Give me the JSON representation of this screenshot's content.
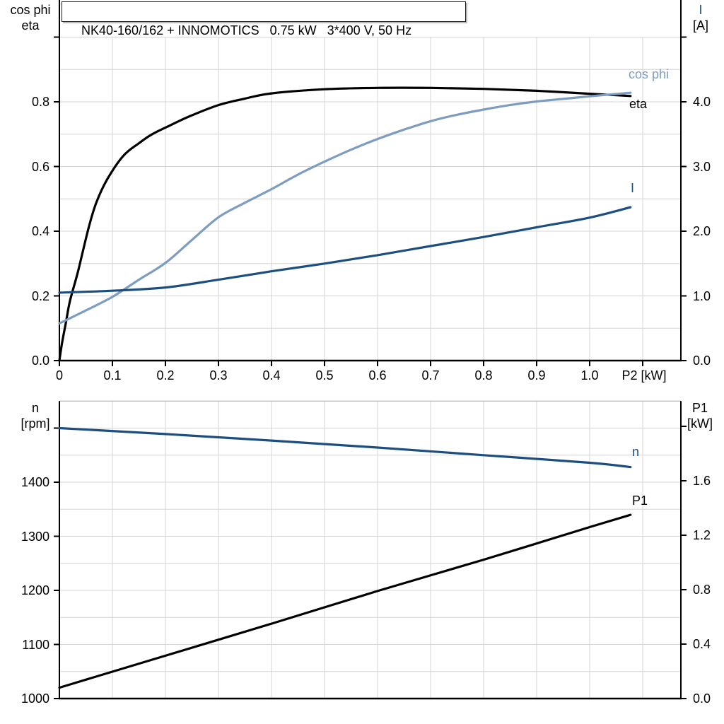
{
  "title": "NK40-160/162 + INNOMOTICS   0.75 kW   3*400 V, 50 Hz",
  "colors": {
    "black": "#000000",
    "light_blue": "#7d9dc0",
    "dark_blue": "#1c4e80",
    "grid": "#d4d4d4",
    "grid_dark": "#a6a6a6",
    "frame": "#000000"
  },
  "axis_headers": {
    "top_left_1": "cos phi",
    "top_left_2": "eta",
    "top_right_1": "I",
    "top_right_2": "[A]",
    "x_label": "P2 [kW]",
    "bottom_left_1": "n",
    "bottom_left_2": "[rpm]",
    "bottom_right_1": "P1",
    "bottom_right_2": "[kW]"
  },
  "chart_data": [
    {
      "type": "line",
      "title": "NK40-160/162 + INNOMOTICS 0.75 kW 3*400 V, 50 Hz",
      "x_axis": {
        "label": "P2 [kW]",
        "min": 0,
        "max": 1.17,
        "tick_values": [
          0,
          0.1,
          0.2,
          0.3,
          0.4,
          0.5,
          0.6,
          0.7,
          0.8,
          0.9,
          1.0
        ],
        "tick_labels": [
          "0",
          "0.1",
          "0.2",
          "0.3",
          "0.4",
          "0.5",
          "0.6",
          "0.7",
          "0.8",
          "0.9",
          "1.0"
        ],
        "grid": true
      },
      "y_left": {
        "label": "cos phi / eta",
        "min": 0,
        "max": 1.0,
        "tick_values": [
          0,
          0.2,
          0.4,
          0.6,
          0.8
        ],
        "tick_labels": [
          "0.0",
          "0.2",
          "0.4",
          "0.6",
          "0.8"
        ],
        "grid_step": 0.1
      },
      "y_right": {
        "label": "I [A]",
        "min": 0,
        "max": 5.0,
        "tick_values": [
          0,
          1,
          2,
          3,
          4
        ],
        "tick_labels": [
          "0.0",
          "1.0",
          "2.0",
          "3.0",
          "4.0"
        ]
      },
      "legend_position": "right-of-curves",
      "series": [
        {
          "name": "eta",
          "axis": "left",
          "color": "black",
          "points": [
            [
              0,
              0
            ],
            [
              0.005,
              0.055
            ],
            [
              0.012,
              0.115
            ],
            [
              0.02,
              0.185
            ],
            [
              0.035,
              0.275
            ],
            [
              0.055,
              0.41
            ],
            [
              0.07,
              0.49
            ],
            [
              0.09,
              0.56
            ],
            [
              0.12,
              0.632
            ],
            [
              0.15,
              0.672
            ],
            [
              0.175,
              0.7
            ],
            [
              0.21,
              0.728
            ],
            [
              0.245,
              0.755
            ],
            [
              0.3,
              0.79
            ],
            [
              0.35,
              0.81
            ],
            [
              0.4,
              0.826
            ],
            [
              0.5,
              0.839
            ],
            [
              0.6,
              0.843
            ],
            [
              0.7,
              0.843
            ],
            [
              0.8,
              0.84
            ],
            [
              0.9,
              0.834
            ],
            [
              1.0,
              0.825
            ],
            [
              1.077,
              0.818
            ]
          ]
        },
        {
          "name": "cos phi",
          "axis": "left",
          "color": "light_blue",
          "points": [
            [
              0,
              0.115
            ],
            [
              0.05,
              0.155
            ],
            [
              0.1,
              0.197
            ],
            [
              0.15,
              0.25
            ],
            [
              0.2,
              0.302
            ],
            [
              0.25,
              0.373
            ],
            [
              0.3,
              0.443
            ],
            [
              0.35,
              0.488
            ],
            [
              0.4,
              0.53
            ],
            [
              0.45,
              0.575
            ],
            [
              0.5,
              0.615
            ],
            [
              0.55,
              0.652
            ],
            [
              0.6,
              0.685
            ],
            [
              0.65,
              0.714
            ],
            [
              0.7,
              0.74
            ],
            [
              0.75,
              0.76
            ],
            [
              0.8,
              0.776
            ],
            [
              0.85,
              0.79
            ],
            [
              0.9,
              0.801
            ],
            [
              0.95,
              0.809
            ],
            [
              1.0,
              0.817
            ],
            [
              1.077,
              0.828
            ]
          ]
        },
        {
          "name": "I",
          "axis": "right",
          "color": "dark_blue",
          "points": [
            [
              0,
              1.05
            ],
            [
              0.1,
              1.08
            ],
            [
              0.2,
              1.13
            ],
            [
              0.3,
              1.25
            ],
            [
              0.4,
              1.38
            ],
            [
              0.5,
              1.5
            ],
            [
              0.6,
              1.63
            ],
            [
              0.7,
              1.77
            ],
            [
              0.8,
              1.91
            ],
            [
              0.9,
              2.06
            ],
            [
              1.0,
              2.21
            ],
            [
              1.077,
              2.37
            ]
          ]
        }
      ]
    },
    {
      "type": "line",
      "title": "",
      "x_axis": {
        "label": "",
        "min": 0,
        "max": 1.17,
        "tick_values": [],
        "tick_labels": [],
        "grid": true
      },
      "y_left": {
        "label": "n [rpm]",
        "min": 1000,
        "max": 1550,
        "tick_values": [
          1000,
          1100,
          1200,
          1300,
          1400
        ],
        "tick_labels": [
          "1000",
          "1100",
          "1200",
          "1300",
          "1400"
        ],
        "grid_step": 50
      },
      "y_right": {
        "label": "P1 [kW]",
        "min": 0,
        "max": 2.19,
        "tick_values": [
          0,
          0.4,
          0.8,
          1.2,
          1.6
        ],
        "tick_labels": [
          "0.0",
          "0.4",
          "0.8",
          "1.2",
          "1.6"
        ]
      },
      "series": [
        {
          "name": "n",
          "axis": "left",
          "color": "dark_blue",
          "points": [
            [
              0,
              1500
            ],
            [
              0.2,
              1489
            ],
            [
              0.4,
              1477
            ],
            [
              0.6,
              1464
            ],
            [
              0.8,
              1450
            ],
            [
              1.0,
              1436
            ],
            [
              1.077,
              1428
            ]
          ]
        },
        {
          "name": "P1",
          "axis": "right",
          "color": "black",
          "points": [
            [
              0,
              0.08
            ],
            [
              0.2,
              0.315
            ],
            [
              0.4,
              0.55
            ],
            [
              0.6,
              0.79
            ],
            [
              0.8,
              1.02
            ],
            [
              1.0,
              1.26
            ],
            [
              1.077,
              1.35
            ]
          ]
        }
      ]
    }
  ]
}
